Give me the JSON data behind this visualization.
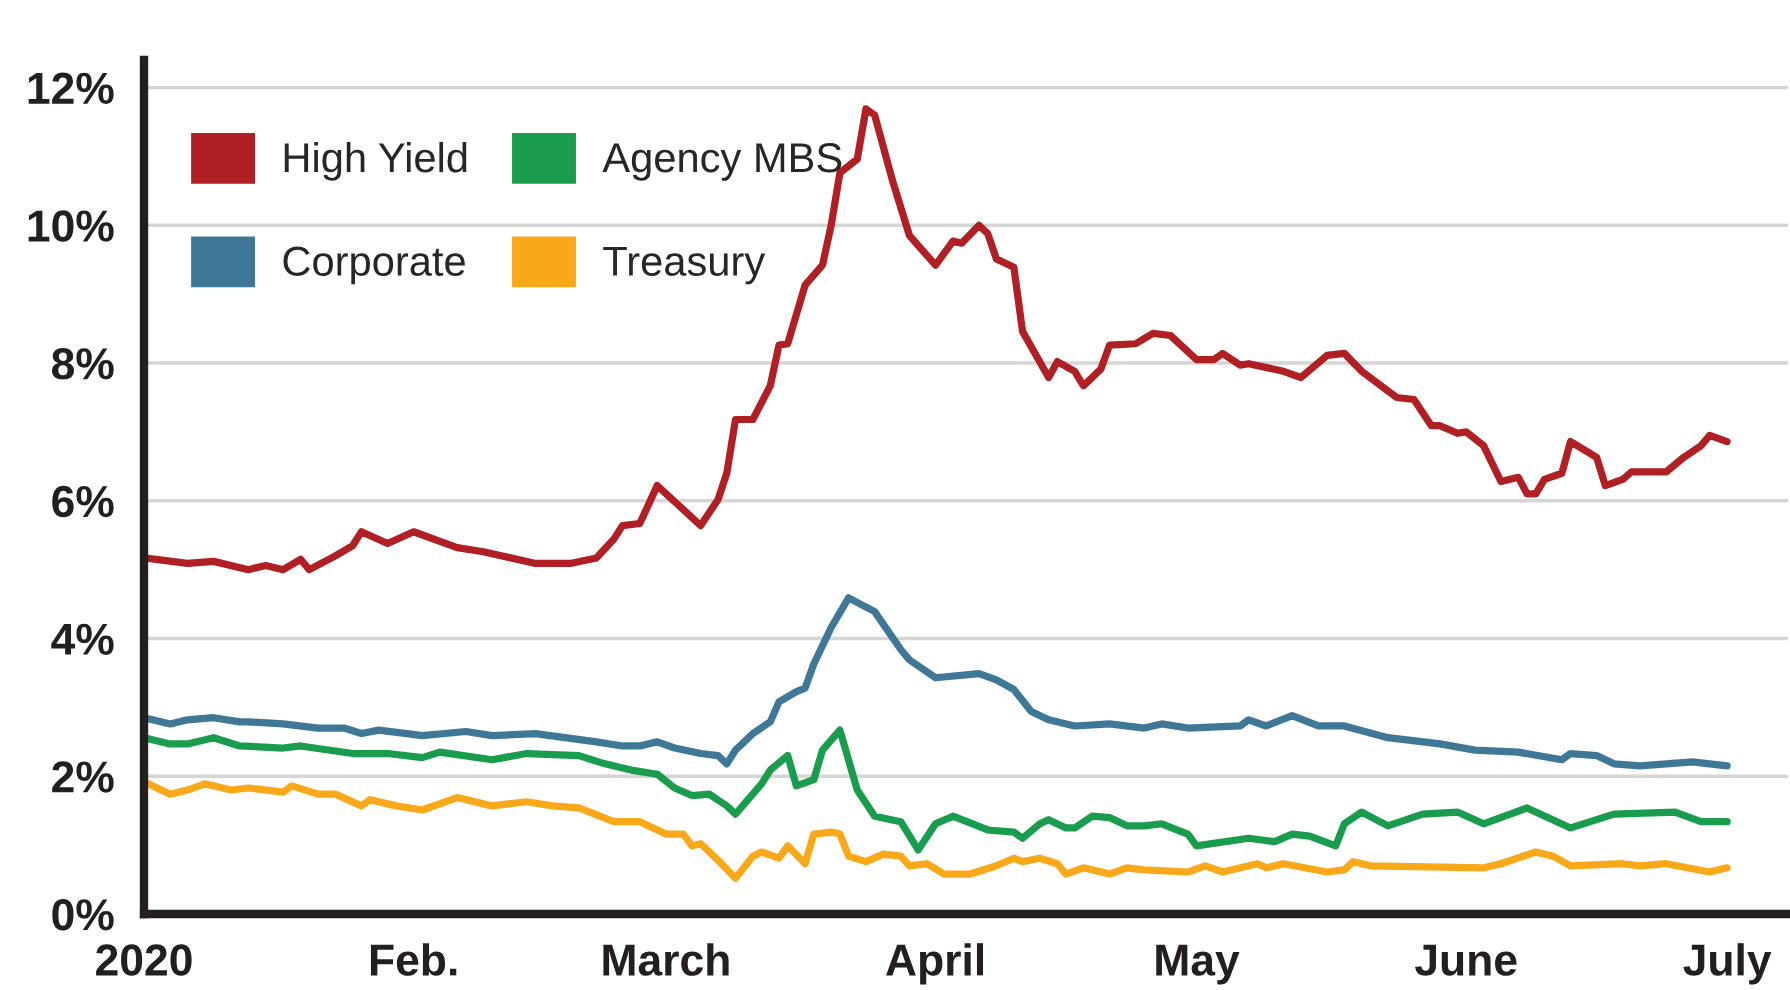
{
  "chart_data": {
    "type": "line",
    "series": [
      {
        "name": "High Yield",
        "color": "#b01f24",
        "x": [
          "2020-01-01",
          "2020-01-06",
          "2020-01-09",
          "2020-01-13",
          "2020-01-15",
          "2020-01-17",
          "2020-01-19",
          "2020-01-20",
          "2020-01-23",
          "2020-01-25",
          "2020-01-26",
          "2020-01-29",
          "2020-02-01",
          "2020-02-06",
          "2020-02-09",
          "2020-02-15",
          "2020-02-19",
          "2020-02-22",
          "2020-02-24",
          "2020-02-25",
          "2020-02-27",
          "2020-02-29",
          "2020-03-05",
          "2020-03-07",
          "2020-03-08",
          "2020-03-09",
          "2020-03-11",
          "2020-03-13",
          "2020-03-14",
          "2020-03-15",
          "2020-03-17",
          "2020-03-19",
          "2020-03-20",
          "2020-03-21",
          "2020-03-23",
          "2020-03-24",
          "2020-03-25",
          "2020-03-27",
          "2020-03-29",
          "2020-04-01",
          "2020-04-03",
          "2020-04-04",
          "2020-04-06",
          "2020-04-07",
          "2020-04-08",
          "2020-04-10",
          "2020-04-11",
          "2020-04-14",
          "2020-04-15",
          "2020-04-17",
          "2020-04-18",
          "2020-04-20",
          "2020-04-21",
          "2020-04-24",
          "2020-04-26",
          "2020-04-28",
          "2020-05-01",
          "2020-05-03",
          "2020-05-04",
          "2020-05-06",
          "2020-05-07",
          "2020-05-11",
          "2020-05-13",
          "2020-05-16",
          "2020-05-18",
          "2020-05-20",
          "2020-05-24",
          "2020-05-26",
          "2020-05-28",
          "2020-05-29",
          "2020-05-31",
          "2020-06-01",
          "2020-06-03",
          "2020-06-05",
          "2020-06-07",
          "2020-06-08",
          "2020-06-09",
          "2020-06-10",
          "2020-06-12",
          "2020-06-13",
          "2020-06-16",
          "2020-06-17",
          "2020-06-19",
          "2020-06-20",
          "2020-06-24",
          "2020-06-26",
          "2020-06-28",
          "2020-06-29",
          "2020-07-01"
        ],
        "values": [
          5.17,
          5.09,
          5.12,
          5.0,
          5.06,
          5.0,
          5.15,
          5.0,
          5.2,
          5.35,
          5.55,
          5.38,
          5.55,
          5.32,
          5.26,
          5.09,
          5.09,
          5.17,
          5.44,
          5.64,
          5.67,
          6.22,
          5.64,
          6.02,
          6.4,
          7.18,
          7.18,
          7.67,
          8.26,
          8.28,
          9.13,
          9.42,
          10.0,
          10.76,
          10.96,
          11.69,
          11.6,
          10.67,
          9.85,
          9.42,
          9.77,
          9.74,
          10.0,
          9.88,
          9.51,
          9.39,
          8.46,
          7.79,
          8.02,
          7.88,
          7.67,
          7.91,
          8.26,
          8.28,
          8.43,
          8.4,
          8.05,
          8.05,
          8.14,
          7.97,
          7.99,
          7.88,
          7.79,
          8.11,
          8.14,
          7.88,
          7.5,
          7.47,
          7.09,
          7.09,
          6.98,
          7.0,
          6.8,
          6.28,
          6.34,
          6.1,
          6.1,
          6.31,
          6.4,
          6.86,
          6.63,
          6.22,
          6.31,
          6.42,
          6.42,
          6.63,
          6.8,
          6.95,
          6.86
        ]
      },
      {
        "name": "Agency MBS",
        "color": "#1a9c4e",
        "x": [
          "2020-01-01",
          "2020-01-04",
          "2020-01-06",
          "2020-01-09",
          "2020-01-12",
          "2020-01-17",
          "2020-01-19",
          "2020-01-25",
          "2020-01-29",
          "2020-02-02",
          "2020-02-04",
          "2020-02-10",
          "2020-02-14",
          "2020-02-20",
          "2020-02-23",
          "2020-02-26",
          "2020-02-29",
          "2020-03-02",
          "2020-03-04",
          "2020-03-06",
          "2020-03-08",
          "2020-03-09",
          "2020-03-12",
          "2020-03-13",
          "2020-03-15",
          "2020-03-16",
          "2020-03-18",
          "2020-03-19",
          "2020-03-21",
          "2020-03-23",
          "2020-03-25",
          "2020-03-28",
          "2020-03-30",
          "2020-04-01",
          "2020-04-03",
          "2020-04-07",
          "2020-04-10",
          "2020-04-11",
          "2020-04-13",
          "2020-04-14",
          "2020-04-16",
          "2020-04-17",
          "2020-04-19",
          "2020-04-21",
          "2020-04-23",
          "2020-04-25",
          "2020-04-27",
          "2020-04-30",
          "2020-05-01",
          "2020-05-07",
          "2020-05-10",
          "2020-05-12",
          "2020-05-14",
          "2020-05-17",
          "2020-05-18",
          "2020-05-20",
          "2020-05-23",
          "2020-05-27",
          "2020-05-31",
          "2020-06-03",
          "2020-06-08",
          "2020-06-13",
          "2020-06-18",
          "2020-06-25",
          "2020-06-28",
          "2020-07-01"
        ],
        "values": [
          2.56,
          2.47,
          2.47,
          2.56,
          2.44,
          2.41,
          2.44,
          2.33,
          2.33,
          2.27,
          2.35,
          2.24,
          2.33,
          2.3,
          2.18,
          2.09,
          2.03,
          1.83,
          1.72,
          1.74,
          1.57,
          1.45,
          1.89,
          2.09,
          2.3,
          1.86,
          1.95,
          2.38,
          2.67,
          1.8,
          1.42,
          1.34,
          0.93,
          1.31,
          1.42,
          1.22,
          1.19,
          1.1,
          1.31,
          1.37,
          1.25,
          1.25,
          1.42,
          1.4,
          1.28,
          1.28,
          1.31,
          1.16,
          0.99,
          1.1,
          1.05,
          1.16,
          1.13,
          0.99,
          1.31,
          1.48,
          1.28,
          1.45,
          1.48,
          1.31,
          1.54,
          1.25,
          1.45,
          1.48,
          1.34,
          1.34
        ]
      },
      {
        "name": "Corporate",
        "color": "#3f7896",
        "x": [
          "2020-01-01",
          "2020-01-04",
          "2020-01-06",
          "2020-01-09",
          "2020-01-12",
          "2020-01-13",
          "2020-01-17",
          "2020-01-21",
          "2020-01-24",
          "2020-01-26",
          "2020-01-28",
          "2020-02-02",
          "2020-02-07",
          "2020-02-10",
          "2020-02-15",
          "2020-02-22",
          "2020-02-25",
          "2020-02-27",
          "2020-02-29",
          "2020-03-02",
          "2020-03-05",
          "2020-03-07",
          "2020-03-08",
          "2020-03-09",
          "2020-03-11",
          "2020-03-13",
          "2020-03-14",
          "2020-03-16",
          "2020-03-17",
          "2020-03-18",
          "2020-03-20",
          "2020-03-22",
          "2020-03-25",
          "2020-03-28",
          "2020-03-29",
          "2020-04-01",
          "2020-04-06",
          "2020-04-08",
          "2020-04-10",
          "2020-04-12",
          "2020-04-14",
          "2020-04-17",
          "2020-04-21",
          "2020-04-25",
          "2020-04-27",
          "2020-04-30",
          "2020-05-06",
          "2020-05-07",
          "2020-05-09",
          "2020-05-12",
          "2020-05-15",
          "2020-05-18",
          "2020-05-23",
          "2020-05-29",
          "2020-06-02",
          "2020-06-07",
          "2020-06-12",
          "2020-06-13",
          "2020-06-16",
          "2020-06-18",
          "2020-06-21",
          "2020-06-27",
          "2020-07-01"
        ],
        "values": [
          2.85,
          2.76,
          2.82,
          2.85,
          2.79,
          2.79,
          2.76,
          2.7,
          2.7,
          2.62,
          2.67,
          2.59,
          2.65,
          2.59,
          2.62,
          2.5,
          2.44,
          2.44,
          2.5,
          2.41,
          2.33,
          2.3,
          2.18,
          2.38,
          2.62,
          2.79,
          3.08,
          3.23,
          3.28,
          3.63,
          4.16,
          4.59,
          4.39,
          3.84,
          3.69,
          3.43,
          3.49,
          3.4,
          3.26,
          2.94,
          2.82,
          2.73,
          2.76,
          2.7,
          2.76,
          2.7,
          2.73,
          2.82,
          2.73,
          2.88,
          2.73,
          2.73,
          2.56,
          2.47,
          2.38,
          2.35,
          2.24,
          2.33,
          2.3,
          2.18,
          2.15,
          2.21,
          2.15
        ]
      },
      {
        "name": "Treasury",
        "color": "#f9a81a",
        "x": [
          "2020-01-01",
          "2020-01-04",
          "2020-01-06",
          "2020-01-08",
          "2020-01-11",
          "2020-01-13",
          "2020-01-17",
          "2020-01-18",
          "2020-01-21",
          "2020-01-23",
          "2020-01-26",
          "2020-01-27",
          "2020-01-30",
          "2020-02-02",
          "2020-02-06",
          "2020-02-10",
          "2020-02-14",
          "2020-02-17",
          "2020-02-20",
          "2020-02-24",
          "2020-02-27",
          "2020-03-01",
          "2020-03-03",
          "2020-03-04",
          "2020-03-05",
          "2020-03-07",
          "2020-03-09",
          "2020-03-11",
          "2020-03-12",
          "2020-03-14",
          "2020-03-15",
          "2020-03-17",
          "2020-03-18",
          "2020-03-20",
          "2020-03-21",
          "2020-03-22",
          "2020-03-24",
          "2020-03-26",
          "2020-03-28",
          "2020-03-29",
          "2020-03-31",
          "2020-04-02",
          "2020-04-05",
          "2020-04-08",
          "2020-04-10",
          "2020-04-11",
          "2020-04-13",
          "2020-04-15",
          "2020-04-16",
          "2020-04-18",
          "2020-04-21",
          "2020-04-23",
          "2020-04-25",
          "2020-04-30",
          "2020-05-02",
          "2020-05-04",
          "2020-05-08",
          "2020-05-09",
          "2020-05-11",
          "2020-05-16",
          "2020-05-18",
          "2020-05-19",
          "2020-05-21",
          "2020-06-03",
          "2020-06-05",
          "2020-06-09",
          "2020-06-11",
          "2020-06-13",
          "2020-06-19",
          "2020-06-21",
          "2020-06-24",
          "2020-06-29",
          "2020-07-01"
        ],
        "values": [
          1.92,
          1.74,
          1.8,
          1.89,
          1.8,
          1.83,
          1.77,
          1.86,
          1.74,
          1.74,
          1.57,
          1.66,
          1.57,
          1.51,
          1.69,
          1.57,
          1.63,
          1.57,
          1.54,
          1.34,
          1.34,
          1.16,
          1.16,
          0.99,
          1.02,
          0.78,
          0.52,
          0.84,
          0.9,
          0.81,
          0.99,
          0.73,
          1.16,
          1.19,
          1.16,
          0.84,
          0.76,
          0.87,
          0.84,
          0.7,
          0.73,
          0.58,
          0.58,
          0.7,
          0.81,
          0.76,
          0.81,
          0.73,
          0.58,
          0.67,
          0.58,
          0.67,
          0.64,
          0.61,
          0.7,
          0.61,
          0.73,
          0.67,
          0.73,
          0.61,
          0.64,
          0.76,
          0.7,
          0.67,
          0.73,
          0.9,
          0.84,
          0.7,
          0.73,
          0.7,
          0.73,
          0.61,
          0.67
        ]
      }
    ],
    "xlim": [
      "2020-01-01",
      "2020-07-08"
    ],
    "xticks": [
      {
        "value": "2020-01-01",
        "label": "2020"
      },
      {
        "value": "2020-02-01",
        "label": "Feb."
      },
      {
        "value": "2020-03-01",
        "label": "March"
      },
      {
        "value": "2020-04-01",
        "label": "April"
      },
      {
        "value": "2020-05-01",
        "label": "May"
      },
      {
        "value": "2020-06-01",
        "label": "June"
      },
      {
        "value": "2020-07-01",
        "label": "July"
      }
    ],
    "ylim": [
      0,
      12.4
    ],
    "yticks": [
      {
        "value": 0,
        "label": "0%"
      },
      {
        "value": 2,
        "label": "2%"
      },
      {
        "value": 4,
        "label": "4%"
      },
      {
        "value": 6,
        "label": "6%"
      },
      {
        "value": 8,
        "label": "8%"
      },
      {
        "value": 10,
        "label": "10%"
      },
      {
        "value": 12,
        "label": "12%"
      }
    ],
    "grid": "y",
    "legend": "top left"
  }
}
